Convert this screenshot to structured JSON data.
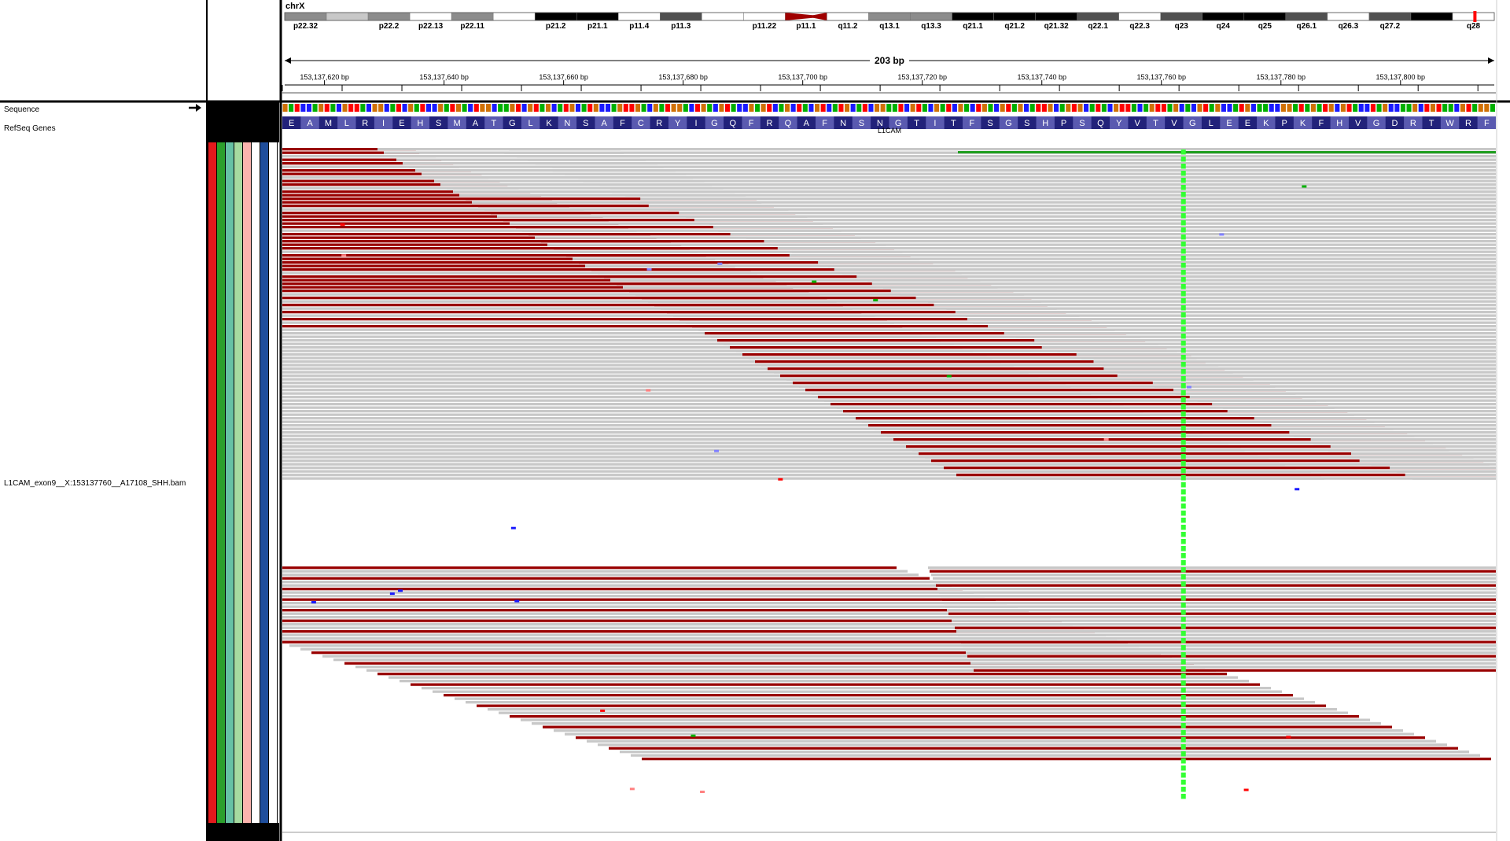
{
  "chromosome": {
    "name": "chrX",
    "bands": [
      {
        "name": "p22.32",
        "stain": "gpos50"
      },
      {
        "name": "",
        "stain": "gpos25"
      },
      {
        "name": "p22.2",
        "stain": "gpos50"
      },
      {
        "name": "p22.13",
        "stain": "gneg"
      },
      {
        "name": "p22.11",
        "stain": "gpos50"
      },
      {
        "name": "",
        "stain": "gneg"
      },
      {
        "name": "p21.2",
        "stain": "gpos100"
      },
      {
        "name": "p21.1",
        "stain": "gpos100"
      },
      {
        "name": "p11.4",
        "stain": "gneg"
      },
      {
        "name": "p11.3",
        "stain": "gpos75"
      },
      {
        "name": "",
        "stain": "gneg"
      },
      {
        "name": "p11.22",
        "stain": "gneg"
      },
      {
        "name": "p11.1",
        "stain": "acen"
      },
      {
        "name": "q11.2",
        "stain": "gneg"
      },
      {
        "name": "q13.1",
        "stain": "gpos50"
      },
      {
        "name": "q13.3",
        "stain": "gpos50"
      },
      {
        "name": "q21.1",
        "stain": "gpos100"
      },
      {
        "name": "q21.2",
        "stain": "gpos100"
      },
      {
        "name": "q21.32",
        "stain": "gpos100"
      },
      {
        "name": "q22.1",
        "stain": "gpos75"
      },
      {
        "name": "q22.3",
        "stain": "gneg"
      },
      {
        "name": "q23",
        "stain": "gpos75"
      },
      {
        "name": "q24",
        "stain": "gpos100"
      },
      {
        "name": "q25",
        "stain": "gpos100"
      },
      {
        "name": "q26.1",
        "stain": "gpos75"
      },
      {
        "name": "q26.3",
        "stain": "gneg"
      },
      {
        "name": "q27.2",
        "stain": "gpos75"
      },
      {
        "name": "",
        "stain": "gpos100"
      },
      {
        "name": "q28",
        "stain": "gneg"
      }
    ],
    "current_view_fraction": 0.984
  },
  "ruler": {
    "span_label": "203 bp",
    "start_bp": 153137609,
    "end_bp": 153137812,
    "ticks": [
      {
        "bp": 153137620,
        "label": "153,137,620 bp"
      },
      {
        "bp": 153137640,
        "label": "153,137,640 bp"
      },
      {
        "bp": 153137660,
        "label": "153,137,660 bp"
      },
      {
        "bp": 153137680,
        "label": "153,137,680 bp"
      },
      {
        "bp": 153137700,
        "label": "153,137,700 bp"
      },
      {
        "bp": 153137720,
        "label": "153,137,720 bp"
      },
      {
        "bp": 153137740,
        "label": "153,137,740 bp"
      },
      {
        "bp": 153137760,
        "label": "153,137,760 bp"
      },
      {
        "bp": 153137780,
        "label": "153,137,780 bp"
      },
      {
        "bp": 153137800,
        "label": "153,137,800 bp"
      }
    ]
  },
  "tracks": {
    "sequence_label": "Sequence",
    "refseq_label": "RefSeq Genes",
    "bam_label": "L1CAM_exon9__X:153137760__A17108_SHH.bam",
    "gene_name": "L1CAM",
    "amino_acids": "EAMLRIEHSMATGLKNSAFCRYIGQFRQAFNSNGTITFSGSHPSQYVTVGLEEKPKFHVGDRTWRF",
    "dna_sequence": "GATCCAGTACGTTACGGCATCGATCCGATGACTGGCAAGTCGTAGCATGCATGCCAGTTGACGATGGACTGACGTACCGAGTCAGCTACGTCATGCATCGGAATCGTACGATCGACTGACGTAGCATTGCAGTGCATACGTTACAGTTAGCACGTAGCCATGCAACCGGATAGATGCGTACCTAGCCAAGCTGTAACGTAGGACTG",
    "variant_bp": 153137760,
    "sample_colors": [
      "#e41a1c",
      "#2ca02c",
      "#66c2a5",
      "#a6dba0",
      "#fbb4ae",
      "#ffffff",
      "#1f4e9c",
      "#ffffff"
    ]
  },
  "colors": {
    "base_A": "#00b000",
    "base_C": "#1a1aff",
    "base_G": "#d17105",
    "base_T": "#ff0000",
    "read_gray": "#c8c8c8",
    "read_discordant": "#990000",
    "variant": "#33ff33",
    "aa_dark": "#22227a",
    "aa_light": "#5a5ab0",
    "junction": "#1f9e1f"
  }
}
